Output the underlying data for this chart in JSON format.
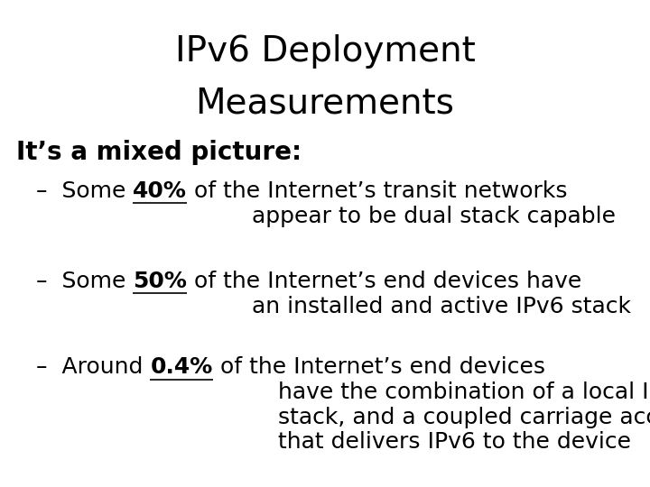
{
  "title_line1": "IPv6 Deployment",
  "title_line2": "Measurements",
  "title_fontsize": 28,
  "title_fontweight": "normal",
  "bg_color": "#ffffff",
  "text_color": "#000000",
  "intro_text": "It’s a mixed picture:",
  "intro_fontsize": 20,
  "intro_fontweight": "bold",
  "bullet_fontsize": 18,
  "figwidth": 7.2,
  "figheight": 5.4,
  "dpi": 100
}
